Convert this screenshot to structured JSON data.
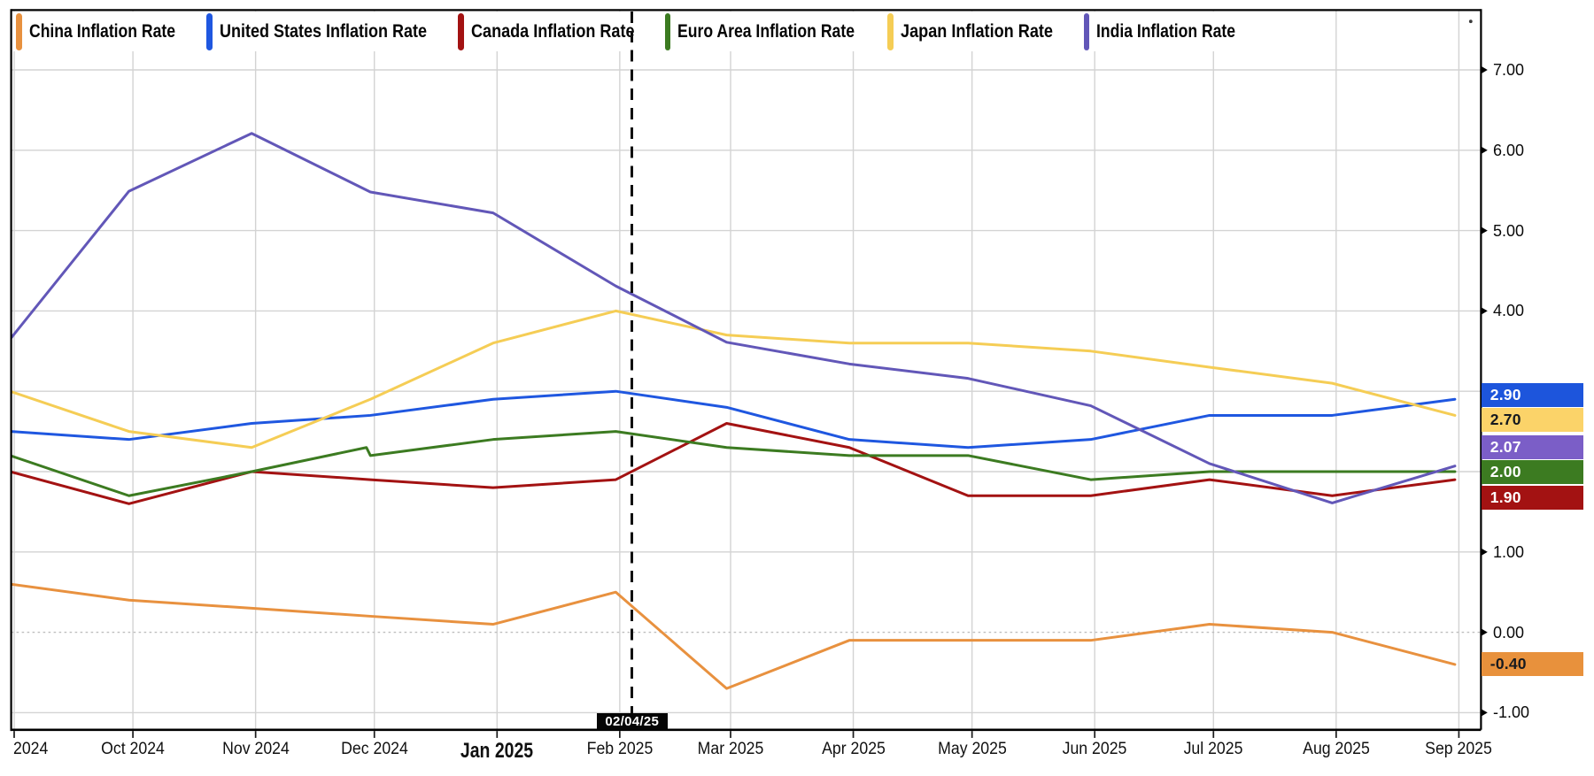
{
  "chart_data": {
    "type": "line",
    "title": "",
    "x_axis": {
      "tick_labels": [
        "2024",
        "Oct 2024",
        "Nov 2024",
        "Dec 2024",
        "Jan 2025",
        "Feb 2025",
        "Mar 2025",
        "Apr 2025",
        "May 2025",
        "Jun 2025",
        "Jul 2025",
        "Aug 2025",
        "Sep 2025"
      ],
      "tick_days_from_2024_09_01": [
        0,
        30,
        61,
        91,
        122,
        153,
        181,
        212,
        242,
        273,
        303,
        334,
        365
      ],
      "emphasized_label": "Jan 2025"
    },
    "y_axis": {
      "visible_tick_labels": [
        "7.00",
        "6.00",
        "5.00",
        "4.00",
        "1.00",
        "0.00",
        "-1.00"
      ],
      "visible_tick_values": [
        7,
        6,
        5,
        4,
        1,
        0,
        -1
      ],
      "hidden_tick_values_covered_by_badges": [
        3,
        2
      ],
      "gridline_values": [
        7,
        6,
        5,
        4,
        3,
        2,
        1,
        -1
      ],
      "zero_line_value": 0,
      "zero_line_style": "dotted",
      "range_top": 7.74,
      "range_bottom": -1.21,
      "side": "right"
    },
    "point_months": [
      "Aug 2024",
      "Sep 2024",
      "Oct 2024",
      "Nov 2024",
      "Dec 2024",
      "Jan 2025",
      "Feb 2025",
      "Mar 2025",
      "Apr 2025",
      "May 2025",
      "Jun 2025",
      "Jul 2025",
      "Aug 2025"
    ],
    "point_days_from_2024_09_01": [
      -1,
      29,
      60,
      90,
      121,
      152,
      180,
      211,
      241,
      272,
      302,
      333,
      364
    ],
    "series": [
      {
        "name": "China Inflation Rate",
        "color": "#E8913F",
        "values": [
          0.6,
          0.4,
          0.3,
          0.2,
          0.1,
          0.5,
          -0.7,
          -0.1,
          -0.1,
          -0.1,
          0.1,
          0.0,
          -0.4
        ],
        "badge": {
          "text": "-0.40",
          "bg": "#E8913C",
          "fg": "#15191F"
        },
        "last_value": -0.4
      },
      {
        "name": "United States Inflation Rate",
        "color": "#1F57E0",
        "values": [
          2.5,
          2.4,
          2.6,
          2.7,
          2.9,
          3.0,
          2.8,
          2.4,
          2.3,
          2.4,
          2.7,
          2.7,
          2.9
        ],
        "badge": {
          "text": "2.90",
          "bg": "#1D55DC",
          "fg": "#FFFFFF"
        },
        "last_value": 2.9
      },
      {
        "name": "Canada Inflation Rate",
        "color": "#A31212",
        "values": [
          2.0,
          1.6,
          2.0,
          1.9,
          1.8,
          1.9,
          2.6,
          2.3,
          1.7,
          1.7,
          1.9,
          1.7,
          1.9
        ],
        "badge": {
          "text": "1.90",
          "bg": "#A31212",
          "fg": "#FFFFFF"
        },
        "last_value": 1.9
      },
      {
        "name": "Euro Area Inflation Rate",
        "color": "#3C7B21",
        "values": [
          2.2,
          1.7,
          2.0,
          2.2,
          2.4,
          2.5,
          2.3,
          2.2,
          2.2,
          1.9,
          2.0,
          2.0,
          2.0
        ],
        "extra_points": [
          {
            "day": 89,
            "value": 2.3
          }
        ],
        "badge": {
          "text": "2.00",
          "bg": "#3C7B21",
          "fg": "#FFFFFF"
        },
        "last_value": 2.0
      },
      {
        "name": "Japan Inflation Rate",
        "color": "#F5CD55",
        "values": [
          3.0,
          2.5,
          2.3,
          2.9,
          3.6,
          4.0,
          3.7,
          3.6,
          3.6,
          3.5,
          3.3,
          3.1,
          2.7
        ],
        "badge": {
          "text": "2.70",
          "bg": "#FBD369",
          "fg": "#15191F"
        },
        "last_value": 2.7
      },
      {
        "name": "India Inflation Rate",
        "color": "#6257B8",
        "values": [
          3.65,
          5.49,
          6.21,
          5.48,
          5.22,
          4.31,
          3.61,
          3.34,
          3.16,
          2.82,
          2.1,
          1.61,
          2.07
        ],
        "badge": {
          "text": "2.07",
          "bg": "#7B5EC7",
          "fg": "#FFFFFF"
        },
        "last_value": 2.07
      }
    ],
    "event_marker": {
      "label": "02/04/25",
      "date": "2025-02-04",
      "day_from_2024_09_01": 156,
      "line_style": "dashed",
      "color": "#000000"
    },
    "legend_position": "top-left-row",
    "grid": "on"
  }
}
